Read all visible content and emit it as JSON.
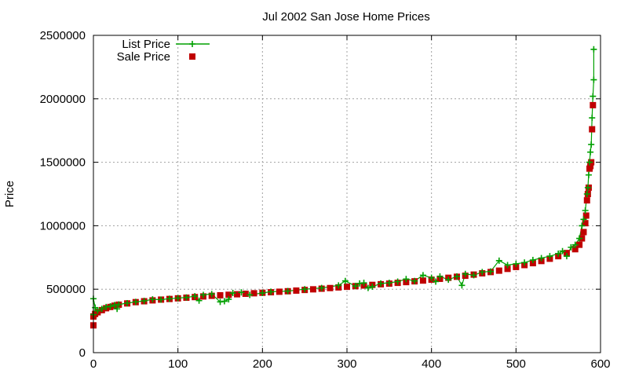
{
  "chart_data": {
    "type": "scatter",
    "title": "Jul 2002 San Jose Home Prices",
    "xlabel": "",
    "ylabel": "Price",
    "xlim": [
      0,
      600
    ],
    "ylim": [
      0,
      2500000
    ],
    "x_ticks": [
      0,
      100,
      200,
      300,
      400,
      500,
      600
    ],
    "y_ticks": [
      0,
      500000,
      1000000,
      1500000,
      2000000,
      2500000
    ],
    "grid": true,
    "legend_position": "top-left",
    "series": [
      {
        "name": "List Price",
        "color": "#00a000",
        "marker": "plus",
        "line": "vertical-impulse",
        "points": [
          [
            0,
            425000
          ],
          [
            0,
            300000
          ],
          [
            2,
            355000
          ],
          [
            5,
            330000
          ],
          [
            10,
            345000
          ],
          [
            15,
            360000
          ],
          [
            20,
            365000
          ],
          [
            25,
            375000
          ],
          [
            28,
            345000
          ],
          [
            30,
            380000
          ],
          [
            40,
            390000
          ],
          [
            50,
            400000
          ],
          [
            60,
            408000
          ],
          [
            70,
            420000
          ],
          [
            80,
            418000
          ],
          [
            90,
            425000
          ],
          [
            100,
            430000
          ],
          [
            110,
            435000
          ],
          [
            120,
            445000
          ],
          [
            125,
            410000
          ],
          [
            130,
            455000
          ],
          [
            140,
            462000
          ],
          [
            150,
            400000
          ],
          [
            155,
            405000
          ],
          [
            160,
            420000
          ],
          [
            165,
            470000
          ],
          [
            175,
            475000
          ],
          [
            185,
            455000
          ],
          [
            200,
            470000
          ],
          [
            210,
            480000
          ],
          [
            230,
            485000
          ],
          [
            250,
            500000
          ],
          [
            270,
            510000
          ],
          [
            290,
            530000
          ],
          [
            298,
            565000
          ],
          [
            310,
            525000
          ],
          [
            315,
            545000
          ],
          [
            320,
            550000
          ],
          [
            325,
            510000
          ],
          [
            330,
            520000
          ],
          [
            340,
            545000
          ],
          [
            350,
            550000
          ],
          [
            360,
            560000
          ],
          [
            370,
            580000
          ],
          [
            380,
            565000
          ],
          [
            390,
            610000
          ],
          [
            400,
            590000
          ],
          [
            405,
            560000
          ],
          [
            410,
            600000
          ],
          [
            420,
            575000
          ],
          [
            430,
            600000
          ],
          [
            436,
            530000
          ],
          [
            440,
            620000
          ],
          [
            450,
            610000
          ],
          [
            460,
            635000
          ],
          [
            470,
            640000
          ],
          [
            480,
            725000
          ],
          [
            490,
            690000
          ],
          [
            500,
            700000
          ],
          [
            510,
            710000
          ],
          [
            520,
            730000
          ],
          [
            530,
            745000
          ],
          [
            540,
            760000
          ],
          [
            550,
            780000
          ],
          [
            555,
            800000
          ],
          [
            560,
            760000
          ],
          [
            565,
            830000
          ],
          [
            570,
            850000
          ],
          [
            575,
            900000
          ],
          [
            578,
            1000000
          ],
          [
            580,
            1050000
          ],
          [
            582,
            1120000
          ],
          [
            584,
            1250000
          ],
          [
            585,
            1300000
          ],
          [
            586,
            1400000
          ],
          [
            587,
            1500000
          ],
          [
            588,
            1580000
          ],
          [
            589,
            1640000
          ],
          [
            590,
            1850000
          ],
          [
            591,
            2020000
          ],
          [
            592,
            2150000
          ],
          [
            592,
            2390000
          ]
        ]
      },
      {
        "name": "Sale Price",
        "color": "#c00000",
        "marker": "square",
        "points": [
          [
            0,
            215000
          ],
          [
            0,
            285000
          ],
          [
            2,
            305000
          ],
          [
            5,
            318000
          ],
          [
            10,
            335000
          ],
          [
            15,
            350000
          ],
          [
            20,
            360000
          ],
          [
            25,
            370000
          ],
          [
            30,
            378000
          ],
          [
            40,
            388000
          ],
          [
            50,
            398000
          ],
          [
            60,
            405000
          ],
          [
            70,
            412000
          ],
          [
            80,
            418000
          ],
          [
            90,
            423000
          ],
          [
            100,
            428000
          ],
          [
            110,
            433000
          ],
          [
            120,
            438000
          ],
          [
            130,
            443000
          ],
          [
            140,
            448000
          ],
          [
            150,
            452000
          ],
          [
            160,
            456000
          ],
          [
            170,
            460000
          ],
          [
            180,
            464000
          ],
          [
            190,
            468000
          ],
          [
            200,
            472000
          ],
          [
            210,
            476000
          ],
          [
            220,
            480000
          ],
          [
            230,
            484000
          ],
          [
            240,
            489000
          ],
          [
            250,
            494000
          ],
          [
            260,
            499000
          ],
          [
            270,
            504000
          ],
          [
            280,
            509000
          ],
          [
            290,
            514000
          ],
          [
            300,
            519000
          ],
          [
            310,
            524000
          ],
          [
            320,
            529000
          ],
          [
            330,
            534000
          ],
          [
            340,
            539000
          ],
          [
            350,
            544000
          ],
          [
            360,
            550000
          ],
          [
            370,
            556000
          ],
          [
            380,
            562000
          ],
          [
            390,
            568000
          ],
          [
            400,
            575000
          ],
          [
            410,
            582000
          ],
          [
            420,
            590000
          ],
          [
            430,
            598000
          ],
          [
            440,
            606000
          ],
          [
            450,
            615000
          ],
          [
            460,
            625000
          ],
          [
            470,
            635000
          ],
          [
            480,
            646000
          ],
          [
            490,
            660000
          ],
          [
            500,
            675000
          ],
          [
            510,
            690000
          ],
          [
            520,
            705000
          ],
          [
            530,
            722000
          ],
          [
            540,
            740000
          ],
          [
            550,
            760000
          ],
          [
            560,
            785000
          ],
          [
            570,
            815000
          ],
          [
            575,
            850000
          ],
          [
            578,
            900000
          ],
          [
            580,
            950000
          ],
          [
            582,
            1020000
          ],
          [
            583,
            1080000
          ],
          [
            584,
            1200000
          ],
          [
            585,
            1250000
          ],
          [
            586,
            1300000
          ],
          [
            587,
            1450000
          ],
          [
            588,
            1470000
          ],
          [
            589,
            1500000
          ],
          [
            590,
            1760000
          ],
          [
            591,
            1950000
          ]
        ]
      }
    ]
  }
}
